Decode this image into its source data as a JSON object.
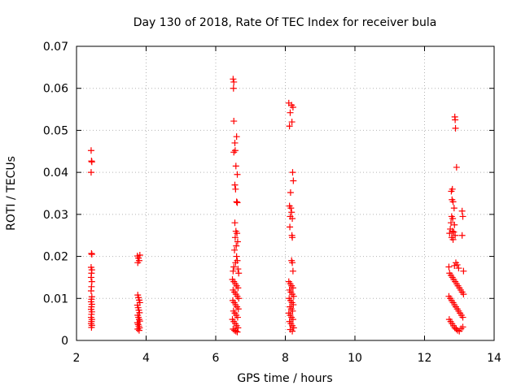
{
  "chart_data": {
    "type": "scatter",
    "title": "Day 130 of 2018, Rate Of TEC Index for receiver bula",
    "xlabel": "GPS time / hours",
    "ylabel": "ROTI / TECUs",
    "xlim": [
      2,
      14
    ],
    "ylim": [
      0,
      0.07
    ],
    "xticks": [
      2,
      4,
      6,
      8,
      10,
      12,
      14
    ],
    "xtick_labels": [
      "2",
      "4",
      "6",
      "8",
      "10",
      "12",
      "14"
    ],
    "yticks": [
      0,
      0.01,
      0.02,
      0.03,
      0.04,
      0.05,
      0.06,
      0.07
    ],
    "ytick_labels": [
      "0",
      "0.01",
      "0.02",
      "0.03",
      "0.04",
      "0.05",
      "0.06",
      "0.07"
    ],
    "grid": true,
    "marker": "+",
    "color": "#ff0000",
    "series": [
      {
        "name": "ROTI",
        "points": [
          [
            2.42,
            0.0452
          ],
          [
            2.43,
            0.0427
          ],
          [
            2.44,
            0.0425
          ],
          [
            2.42,
            0.04
          ],
          [
            2.43,
            0.0207
          ],
          [
            2.44,
            0.0205
          ],
          [
            2.42,
            0.0174
          ],
          [
            2.44,
            0.0168
          ],
          [
            2.43,
            0.016
          ],
          [
            2.42,
            0.015
          ],
          [
            2.44,
            0.014
          ],
          [
            2.43,
            0.0128
          ],
          [
            2.42,
            0.0118
          ],
          [
            2.44,
            0.0104
          ],
          [
            2.43,
            0.0098
          ],
          [
            2.42,
            0.0092
          ],
          [
            2.44,
            0.0086
          ],
          [
            2.43,
            0.008
          ],
          [
            2.42,
            0.0074
          ],
          [
            2.44,
            0.0068
          ],
          [
            2.43,
            0.0062
          ],
          [
            2.42,
            0.0055
          ],
          [
            2.44,
            0.005
          ],
          [
            2.43,
            0.0045
          ],
          [
            2.42,
            0.004
          ],
          [
            2.44,
            0.0036
          ],
          [
            2.43,
            0.0031
          ],
          [
            3.75,
            0.0201
          ],
          [
            3.78,
            0.0196
          ],
          [
            3.8,
            0.019
          ],
          [
            3.76,
            0.0185
          ],
          [
            3.82,
            0.0203
          ],
          [
            3.76,
            0.0108
          ],
          [
            3.78,
            0.0102
          ],
          [
            3.8,
            0.0096
          ],
          [
            3.82,
            0.009
          ],
          [
            3.75,
            0.0084
          ],
          [
            3.77,
            0.0078
          ],
          [
            3.79,
            0.0072
          ],
          [
            3.81,
            0.0066
          ],
          [
            3.76,
            0.006
          ],
          [
            3.78,
            0.0055
          ],
          [
            3.8,
            0.005
          ],
          [
            3.82,
            0.0046
          ],
          [
            3.75,
            0.0042
          ],
          [
            3.77,
            0.0038
          ],
          [
            3.79,
            0.0034
          ],
          [
            3.81,
            0.003
          ],
          [
            3.76,
            0.0027
          ],
          [
            3.8,
            0.0024
          ],
          [
            6.5,
            0.0622
          ],
          [
            6.52,
            0.0615
          ],
          [
            6.51,
            0.06
          ],
          [
            6.52,
            0.0522
          ],
          [
            6.55,
            0.047
          ],
          [
            6.6,
            0.0485
          ],
          [
            6.56,
            0.0452
          ],
          [
            6.52,
            0.0448
          ],
          [
            6.58,
            0.0415
          ],
          [
            6.62,
            0.0395
          ],
          [
            6.55,
            0.037
          ],
          [
            6.57,
            0.036
          ],
          [
            6.6,
            0.033
          ],
          [
            6.62,
            0.0328
          ],
          [
            6.55,
            0.028
          ],
          [
            6.58,
            0.026
          ],
          [
            6.61,
            0.0255
          ],
          [
            6.56,
            0.0245
          ],
          [
            6.63,
            0.0235
          ],
          [
            6.59,
            0.0225
          ],
          [
            6.54,
            0.0215
          ],
          [
            6.6,
            0.02
          ],
          [
            6.62,
            0.019
          ],
          [
            6.57,
            0.0185
          ],
          [
            6.52,
            0.0175
          ],
          [
            6.64,
            0.017
          ],
          [
            6.5,
            0.0165
          ],
          [
            6.66,
            0.016
          ],
          [
            6.48,
            0.0145
          ],
          [
            6.52,
            0.014
          ],
          [
            6.56,
            0.0135
          ],
          [
            6.6,
            0.013
          ],
          [
            6.64,
            0.0125
          ],
          [
            6.5,
            0.012
          ],
          [
            6.54,
            0.0115
          ],
          [
            6.58,
            0.011
          ],
          [
            6.62,
            0.0105
          ],
          [
            6.66,
            0.01
          ],
          [
            6.49,
            0.0095
          ],
          [
            6.53,
            0.009
          ],
          [
            6.57,
            0.0085
          ],
          [
            6.61,
            0.008
          ],
          [
            6.65,
            0.0075
          ],
          [
            6.51,
            0.007
          ],
          [
            6.55,
            0.0065
          ],
          [
            6.59,
            0.006
          ],
          [
            6.63,
            0.0055
          ],
          [
            6.48,
            0.005
          ],
          [
            6.52,
            0.0045
          ],
          [
            6.56,
            0.004
          ],
          [
            6.6,
            0.0035
          ],
          [
            6.64,
            0.003
          ],
          [
            6.5,
            0.0027
          ],
          [
            6.54,
            0.0024
          ],
          [
            6.58,
            0.0022
          ],
          [
            6.62,
            0.002
          ],
          [
            8.1,
            0.0565
          ],
          [
            8.18,
            0.056
          ],
          [
            8.22,
            0.0555
          ],
          [
            8.14,
            0.0542
          ],
          [
            8.19,
            0.052
          ],
          [
            8.12,
            0.051
          ],
          [
            8.21,
            0.04
          ],
          [
            8.23,
            0.038
          ],
          [
            8.15,
            0.0352
          ],
          [
            8.12,
            0.032
          ],
          [
            8.16,
            0.0315
          ],
          [
            8.18,
            0.0305
          ],
          [
            8.14,
            0.0295
          ],
          [
            8.2,
            0.029
          ],
          [
            8.13,
            0.027
          ],
          [
            8.19,
            0.025
          ],
          [
            8.2,
            0.0245
          ],
          [
            8.18,
            0.019
          ],
          [
            8.2,
            0.0185
          ],
          [
            8.22,
            0.0165
          ],
          [
            8.1,
            0.014
          ],
          [
            8.14,
            0.0135
          ],
          [
            8.18,
            0.013
          ],
          [
            8.22,
            0.0125
          ],
          [
            8.12,
            0.012
          ],
          [
            8.16,
            0.0115
          ],
          [
            8.2,
            0.011
          ],
          [
            8.24,
            0.0105
          ],
          [
            8.11,
            0.01
          ],
          [
            8.15,
            0.0095
          ],
          [
            8.19,
            0.009
          ],
          [
            8.23,
            0.0085
          ],
          [
            8.13,
            0.008
          ],
          [
            8.17,
            0.0075
          ],
          [
            8.21,
            0.007
          ],
          [
            8.1,
            0.0065
          ],
          [
            8.14,
            0.006
          ],
          [
            8.18,
            0.0055
          ],
          [
            8.22,
            0.005
          ],
          [
            8.12,
            0.0045
          ],
          [
            8.16,
            0.004
          ],
          [
            8.2,
            0.0035
          ],
          [
            8.24,
            0.003
          ],
          [
            8.14,
            0.0026
          ],
          [
            8.2,
            0.0022
          ],
          [
            12.87,
            0.0532
          ],
          [
            12.88,
            0.0525
          ],
          [
            12.89,
            0.0505
          ],
          [
            12.92,
            0.0412
          ],
          [
            12.8,
            0.036
          ],
          [
            12.77,
            0.0355
          ],
          [
            12.79,
            0.0335
          ],
          [
            12.82,
            0.033
          ],
          [
            12.85,
            0.0315
          ],
          [
            13.08,
            0.0308
          ],
          [
            13.1,
            0.0295
          ],
          [
            12.78,
            0.0295
          ],
          [
            12.81,
            0.029
          ],
          [
            12.76,
            0.028
          ],
          [
            12.86,
            0.0275
          ],
          [
            12.74,
            0.0265
          ],
          [
            12.8,
            0.026
          ],
          [
            12.84,
            0.0258
          ],
          [
            12.72,
            0.0255
          ],
          [
            12.88,
            0.025
          ],
          [
            13.08,
            0.025
          ],
          [
            12.78,
            0.0245
          ],
          [
            12.82,
            0.024
          ],
          [
            12.9,
            0.0185
          ],
          [
            12.94,
            0.018
          ],
          [
            12.86,
            0.0178
          ],
          [
            12.7,
            0.0175
          ],
          [
            12.98,
            0.0172
          ],
          [
            13.12,
            0.0165
          ],
          [
            12.72,
            0.016
          ],
          [
            12.76,
            0.0155
          ],
          [
            12.8,
            0.015
          ],
          [
            12.84,
            0.0145
          ],
          [
            12.88,
            0.014
          ],
          [
            12.92,
            0.0135
          ],
          [
            12.96,
            0.013
          ],
          [
            13.0,
            0.0125
          ],
          [
            13.04,
            0.012
          ],
          [
            13.08,
            0.0115
          ],
          [
            13.12,
            0.011
          ],
          [
            12.7,
            0.0105
          ],
          [
            12.74,
            0.01
          ],
          [
            12.78,
            0.0095
          ],
          [
            12.82,
            0.009
          ],
          [
            12.86,
            0.0085
          ],
          [
            12.9,
            0.008
          ],
          [
            12.94,
            0.0075
          ],
          [
            12.98,
            0.007
          ],
          [
            13.02,
            0.0065
          ],
          [
            13.06,
            0.006
          ],
          [
            13.1,
            0.0055
          ],
          [
            12.71,
            0.005
          ],
          [
            12.75,
            0.0045
          ],
          [
            12.79,
            0.004
          ],
          [
            12.83,
            0.0035
          ],
          [
            12.87,
            0.003
          ],
          [
            12.91,
            0.0027
          ],
          [
            12.95,
            0.0024
          ],
          [
            13.0,
            0.0022
          ],
          [
            13.05,
            0.0028
          ],
          [
            13.1,
            0.0032
          ]
        ]
      }
    ]
  }
}
